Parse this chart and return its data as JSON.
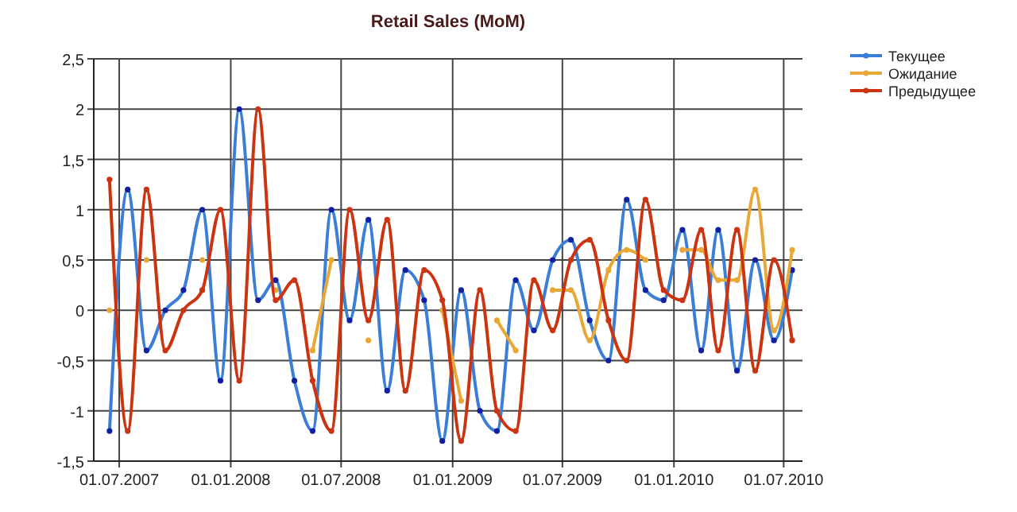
{
  "chart_data": {
    "type": "line",
    "title": "Retail Sales (MoM)",
    "x": [
      "2007-06-15",
      "2007-07-15",
      "2007-08-15",
      "2007-09-15",
      "2007-10-15",
      "2007-11-15",
      "2007-12-15",
      "2008-01-15",
      "2008-02-15",
      "2008-03-15",
      "2008-04-15",
      "2008-05-15",
      "2008-06-15",
      "2008-07-15",
      "2008-08-15",
      "2008-09-15",
      "2008-10-15",
      "2008-11-15",
      "2008-12-15",
      "2009-01-15",
      "2009-02-15",
      "2009-03-15",
      "2009-04-15",
      "2009-05-15",
      "2009-06-15",
      "2009-07-15",
      "2009-08-15",
      "2009-09-15",
      "2009-10-15",
      "2009-11-15",
      "2009-12-15",
      "2010-01-15",
      "2010-02-15",
      "2010-03-15",
      "2010-04-15",
      "2010-05-15",
      "2010-06-15",
      "2010-07-15"
    ],
    "series": [
      {
        "name": "Текущее",
        "color": "#3a7fd5",
        "values": [
          -1.2,
          1.2,
          -0.4,
          0,
          0.2,
          1.0,
          -0.7,
          2.0,
          0.1,
          0.3,
          -0.7,
          -1.2,
          1.0,
          -0.1,
          0.9,
          -0.8,
          0.4,
          0.1,
          -1.3,
          0.2,
          -1.0,
          -1.2,
          0.3,
          -0.2,
          0.5,
          0.7,
          -0.1,
          -0.5,
          1.1,
          0.2,
          0.1,
          0.8,
          -0.4,
          0.8,
          -0.6,
          0.5,
          -0.3,
          0.4
        ]
      },
      {
        "name": "Ожидание",
        "color": "#e8a838",
        "values": [
          0,
          null,
          0.5,
          null,
          null,
          0.5,
          null,
          null,
          null,
          0.2,
          null,
          -0.4,
          0.5,
          null,
          -0.3,
          null,
          null,
          null,
          0.0,
          -0.9,
          null,
          -0.1,
          -0.4,
          null,
          0.2,
          0.2,
          -0.3,
          0.4,
          0.6,
          0.5,
          null,
          0.6,
          0.6,
          0.3,
          0.3,
          1.2,
          -0.2,
          0.6
        ]
      },
      {
        "name": "Предыдущее",
        "color": "#cc3311",
        "values": [
          1.3,
          -1.2,
          1.2,
          -0.4,
          0,
          0.2,
          1.0,
          -0.7,
          2.0,
          0.1,
          0.3,
          -0.7,
          -1.2,
          1.0,
          -0.1,
          0.9,
          -0.8,
          0.4,
          0.1,
          -1.3,
          0.2,
          -1.0,
          -1.2,
          0.3,
          -0.2,
          0.5,
          0.7,
          -0.1,
          -0.5,
          1.1,
          0.2,
          0.1,
          0.8,
          -0.4,
          0.8,
          -0.6,
          0.5,
          -0.3
        ]
      }
    ],
    "xlim": [
      "2007-05-20",
      "2010-08-01"
    ],
    "xticks": [
      {
        "value": "2007-07-01",
        "label": "01.07.2007"
      },
      {
        "value": "2008-01-01",
        "label": "01.01.2008"
      },
      {
        "value": "2008-07-01",
        "label": "01.07.2008"
      },
      {
        "value": "2009-01-01",
        "label": "01.01.2009"
      },
      {
        "value": "2009-07-01",
        "label": "01.07.2009"
      },
      {
        "value": "2010-01-01",
        "label": "01.01.2010"
      },
      {
        "value": "2010-07-01",
        "label": "01.07.2010"
      }
    ],
    "ylim": [
      -1.5,
      2.5
    ],
    "yticks": [
      {
        "value": -1.5,
        "label": "-1,5"
      },
      {
        "value": -1,
        "label": "-1"
      },
      {
        "value": -0.5,
        "label": "-0,5"
      },
      {
        "value": 0,
        "label": "0"
      },
      {
        "value": 0.5,
        "label": "0,5"
      },
      {
        "value": 1,
        "label": "1"
      },
      {
        "value": 1.5,
        "label": "1,5"
      },
      {
        "value": 2,
        "label": "2"
      },
      {
        "value": 2.5,
        "label": "2,5"
      }
    ],
    "grid": true,
    "legend": "top right",
    "marker": "circle",
    "line_style": "solid"
  }
}
